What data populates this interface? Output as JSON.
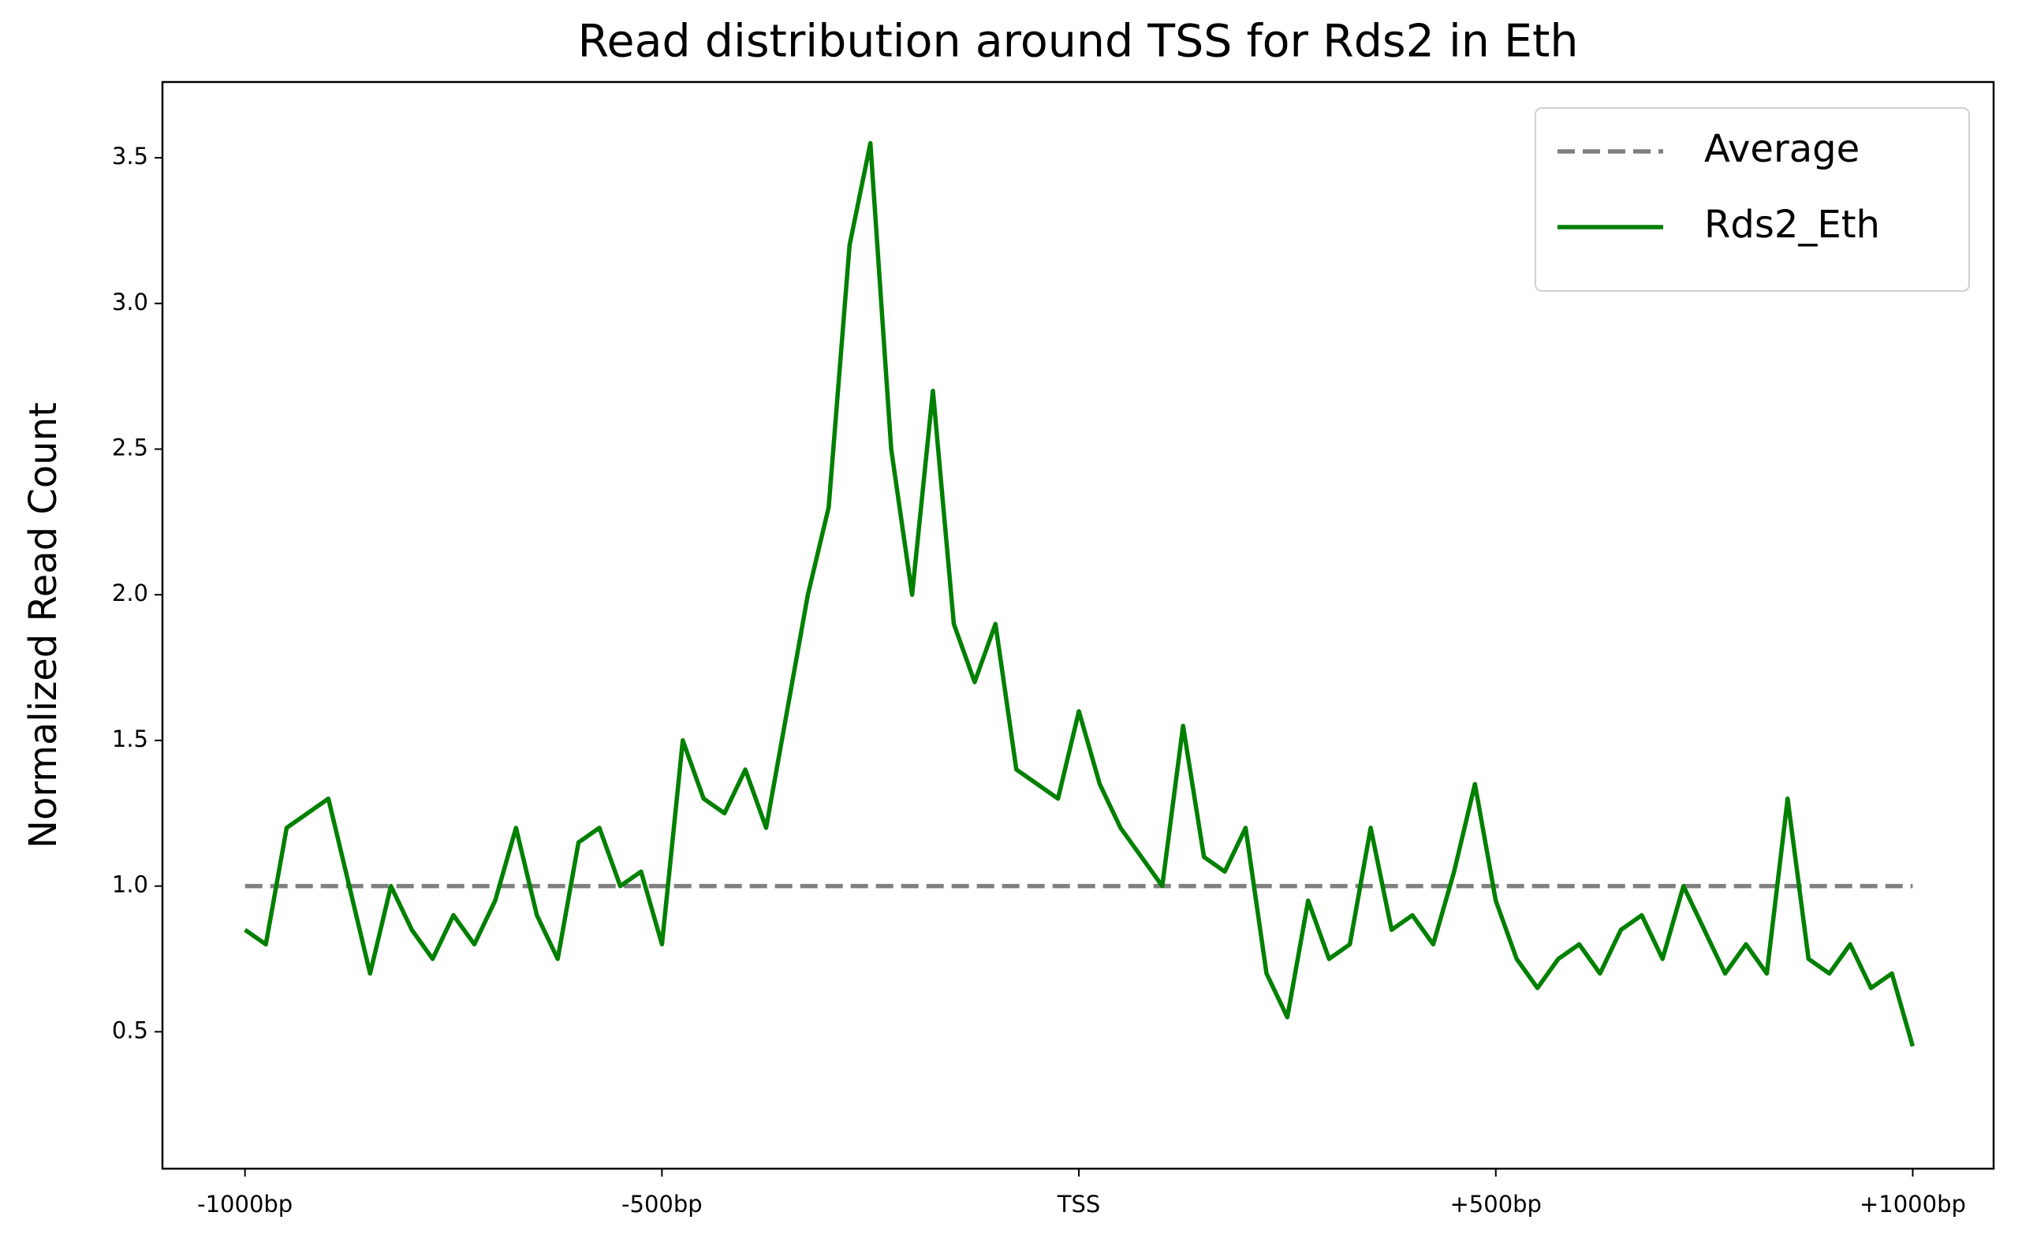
{
  "chart_data": {
    "type": "line",
    "title": "Read distribution around TSS for Rds2 in Eth",
    "y_label": "Normalized Read Count",
    "xlim": [
      -1099,
      1097
    ],
    "ylim": [
      0.03,
      3.76
    ],
    "xticks": [
      {
        "value": -1000,
        "label": "-1000bp"
      },
      {
        "value": -500,
        "label": "-500bp"
      },
      {
        "value": 0,
        "label": "TSS"
      },
      {
        "value": 500,
        "label": "+500bp"
      },
      {
        "value": 1000,
        "label": "+1000bp"
      }
    ],
    "yticks": [
      0.5,
      {
        "value": 1,
        "label": "1.0"
      },
      1.5,
      {
        "value": 2,
        "label": "2.0"
      },
      2.5,
      {
        "value": 3,
        "label": "3.0"
      },
      3.5
    ],
    "grid": false,
    "legend": "upper right",
    "series": [
      {
        "name": "Average",
        "color": "#808080",
        "dashed": true,
        "x": [
          -1000,
          1000
        ],
        "values": [
          1,
          1
        ]
      },
      {
        "name": "Rds2_Eth",
        "color": "#008000",
        "dashed": false,
        "x": [
          -1000,
          -975,
          -950,
          -925,
          -900,
          -875,
          -850,
          -825,
          -800,
          -775,
          -750,
          -725,
          -700,
          -675,
          -650,
          -625,
          -600,
          -575,
          -550,
          -525,
          -500,
          -475,
          -450,
          -425,
          -400,
          -375,
          -350,
          -325,
          -300,
          -275,
          -250,
          -225,
          -200,
          -175,
          -150,
          -125,
          -100,
          -75,
          -50,
          -25,
          0,
          25,
          50,
          75,
          100,
          125,
          150,
          175,
          200,
          225,
          250,
          275,
          300,
          325,
          350,
          375,
          400,
          425,
          450,
          475,
          500,
          525,
          550,
          575,
          600,
          625,
          650,
          675,
          700,
          725,
          750,
          775,
          800,
          825,
          850,
          875,
          900,
          925,
          950,
          975,
          1000
        ],
        "values": [
          0.85,
          0.8,
          1.2,
          1.25,
          1.3,
          1.0,
          0.7,
          1.0,
          0.85,
          0.75,
          0.9,
          0.8,
          0.95,
          1.2,
          0.9,
          0.75,
          1.15,
          1.2,
          1.0,
          1.05,
          0.8,
          1.5,
          1.3,
          1.25,
          1.4,
          1.2,
          1.6,
          2.0,
          2.3,
          3.2,
          3.55,
          2.5,
          2.0,
          2.7,
          1.9,
          1.7,
          1.9,
          1.4,
          1.35,
          1.3,
          1.6,
          1.35,
          1.2,
          1.1,
          1.0,
          1.55,
          1.1,
          1.05,
          1.2,
          0.7,
          0.55,
          0.95,
          0.75,
          0.8,
          1.2,
          0.85,
          0.9,
          0.8,
          1.05,
          1.35,
          0.95,
          0.75,
          0.65,
          0.75,
          0.8,
          0.7,
          0.85,
          0.9,
          0.75,
          1.0,
          0.85,
          0.7,
          0.8,
          0.7,
          1.3,
          0.75,
          0.7,
          0.8,
          0.65,
          0.7,
          0.45
        ]
      }
    ]
  }
}
